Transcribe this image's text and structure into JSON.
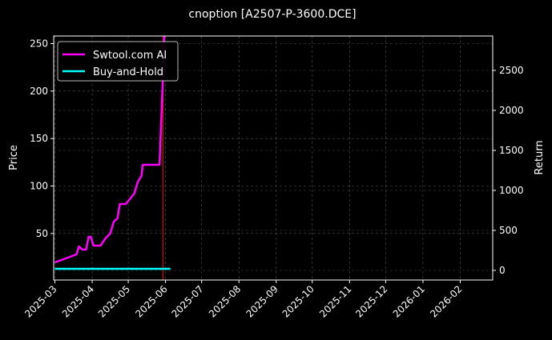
{
  "chart_data": {
    "type": "line",
    "title": "cnoption [A2507-P-3600.DCE]",
    "ylabel": "Price",
    "y2label": "Return",
    "ylim": [
      1,
      258
    ],
    "y2lim": [
      -120,
      2930
    ],
    "xlim": [
      "2025-02-28",
      "2026-02-28"
    ],
    "yticks": [
      50,
      100,
      150,
      200,
      250
    ],
    "y2ticks": [
      0,
      500,
      1000,
      1500,
      2000,
      2500
    ],
    "xticks": [
      "2025-03",
      "2025-04",
      "2025-05",
      "2025-06",
      "2025-07",
      "2025-08",
      "2025-09",
      "2025-10",
      "2025-11",
      "2025-12",
      "2026-01",
      "2026-02"
    ],
    "grid": true,
    "legend_position": "top-left",
    "series": [
      {
        "name": "Swtool.com AI",
        "axis": "right",
        "color": "#ff00ff",
        "x": [
          "2025-03-01",
          "2025-03-19",
          "2025-03-21",
          "2025-03-24",
          "2025-03-27",
          "2025-03-29",
          "2025-03-31",
          "2025-04-02",
          "2025-04-08",
          "2025-04-12",
          "2025-04-16",
          "2025-04-19",
          "2025-04-22",
          "2025-04-24",
          "2025-04-29",
          "2025-05-06",
          "2025-05-09",
          "2025-05-12",
          "2025-05-13",
          "2025-05-27",
          "2025-05-30",
          "2025-06-01"
        ],
        "y": [
          100,
          200,
          300,
          260,
          260,
          420,
          420,
          310,
          310,
          400,
          460,
          610,
          650,
          830,
          830,
          960,
          1110,
          1180,
          1320,
          1320,
          2480,
          3500
        ]
      },
      {
        "name": "Buy-and-Hold",
        "axis": "right",
        "color": "#00ffff",
        "x": [
          "2025-03-01",
          "2025-06-05"
        ],
        "y": [
          20,
          20
        ]
      }
    ],
    "vline": {
      "x": "2025-05-30",
      "color": "#ff0000"
    }
  }
}
